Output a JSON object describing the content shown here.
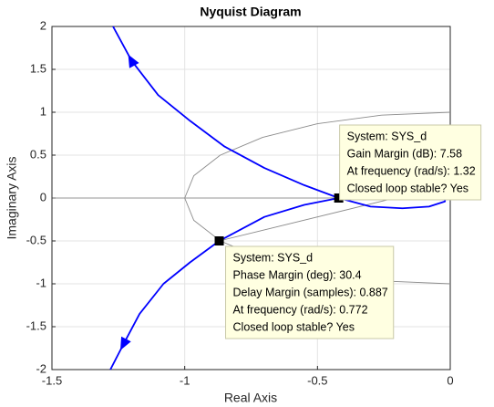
{
  "chart_data": {
    "type": "line",
    "title": "Nyquist Diagram",
    "xlabel": "Real Axis",
    "ylabel": "Imaginary Axis",
    "xlim": [
      -1.5,
      0
    ],
    "ylim": [
      -2,
      2
    ],
    "xticks": [
      -1.5,
      -1,
      -0.5,
      0
    ],
    "yticks": [
      -2,
      -1.5,
      -1,
      -0.5,
      0,
      0.5,
      1,
      1.5,
      2
    ],
    "grid": true,
    "series": [
      {
        "color": "#0000ff",
        "x": [
          -1.27,
          -1.2,
          -1.1,
          -0.98,
          -0.85,
          -0.7,
          -0.55,
          -0.42,
          -0.3,
          -0.18,
          -0.08,
          -0.02,
          -0.02,
          -0.08,
          -0.2,
          -0.32,
          -0.42,
          -0.55,
          -0.7,
          -0.87,
          -0.98,
          -1.08,
          -1.17,
          -1.23,
          -1.28
        ],
        "y": [
          2,
          1.6,
          1.2,
          0.9,
          0.6,
          0.35,
          0.15,
          0,
          -0.1,
          -0.12,
          -0.1,
          -0.04,
          0.03,
          0.06,
          0.05,
          0.03,
          0,
          -0.08,
          -0.22,
          -0.5,
          -0.75,
          -1,
          -1.35,
          -1.7,
          -2
        ]
      },
      {
        "color": "#8c8c8c",
        "x": [
          0,
          -0.259,
          -0.5,
          -0.707,
          -0.866,
          -0.966,
          -1,
          -0.966,
          -0.866,
          -0.707,
          -0.5,
          -0.259,
          0
        ],
        "y": [
          1,
          0.966,
          0.866,
          0.707,
          0.5,
          0.259,
          0,
          -0.259,
          -0.5,
          -0.707,
          -0.866,
          -0.966,
          -1
        ]
      },
      {
        "color": "#8c8c8c",
        "x": [
          -0.87,
          -0.05
        ],
        "y": [
          -0.5,
          0.12
        ]
      }
    ],
    "annotations": [
      {
        "x": -0.42,
        "y": 0,
        "lines": [
          "System: SYS_d",
          "Gain Margin (dB): 7.58",
          "At frequency (rad/s): 1.32",
          "Closed loop stable? Yes"
        ]
      },
      {
        "x": -0.87,
        "y": -0.5,
        "lines": [
          "System: SYS_d",
          "Phase Margin (deg): 30.4",
          "Delay Margin (samples): 0.887",
          "At frequency (rad/s): 0.772",
          "Closed loop stable? Yes"
        ]
      }
    ]
  }
}
